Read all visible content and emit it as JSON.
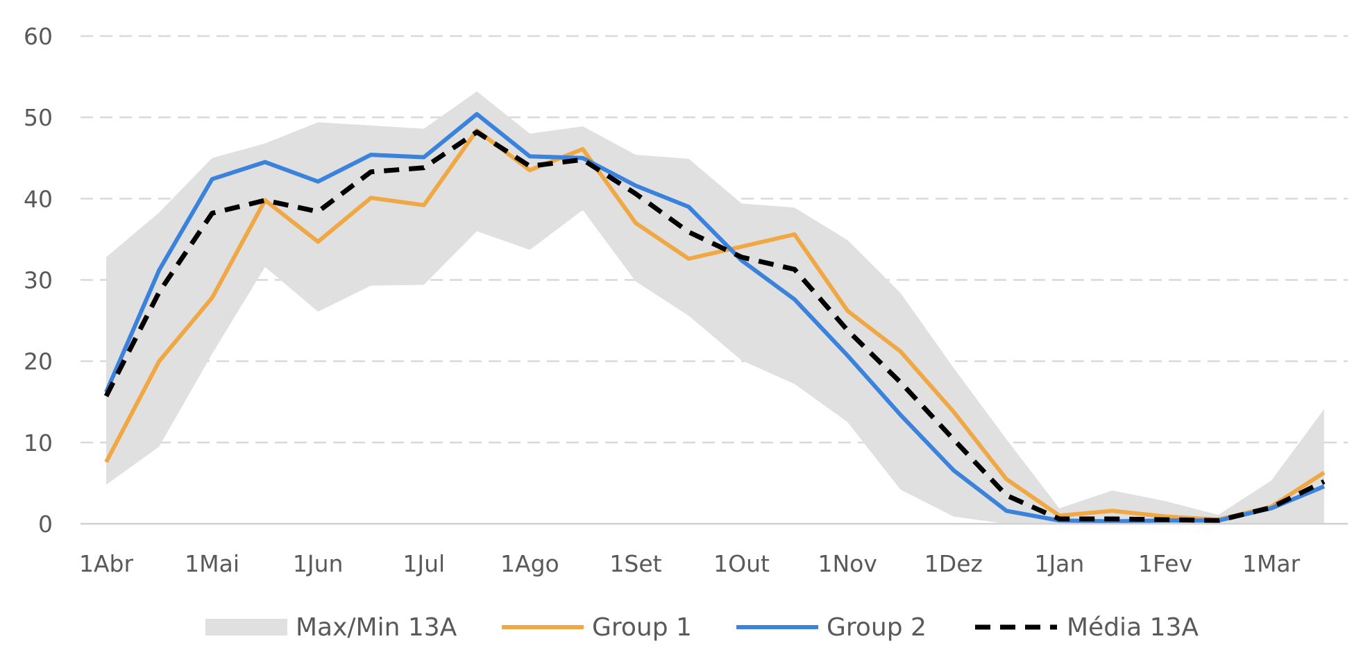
{
  "chart_data": {
    "type": "line",
    "title": "",
    "xlabel": "",
    "ylabel": "",
    "ylim": [
      0,
      60
    ],
    "yticks": [
      0,
      10,
      20,
      30,
      40,
      50,
      60
    ],
    "grid": "horizontal dashed",
    "legend_position": "bottom",
    "x_tick_labels": [
      "1Abr",
      "1Mai",
      "1Jun",
      "1Jul",
      "1Ago",
      "1Set",
      "1Out",
      "1Nov",
      "1Dez",
      "1Jan",
      "1Fev",
      "1Mar"
    ],
    "x": [
      0,
      0.5,
      1,
      1.5,
      2,
      2.5,
      3,
      3.5,
      4,
      4.5,
      5,
      5.5,
      6,
      6.5,
      7,
      7.5,
      8,
      8.5,
      9,
      9.5,
      10,
      10.5,
      11,
      11.5
    ],
    "band": {
      "name": "Max/Min 13A",
      "color": "#e0e0e0",
      "max": [
        32.8,
        38.3,
        45.0,
        46.8,
        49.4,
        49.0,
        48.6,
        53.2,
        48.0,
        48.9,
        45.4,
        44.9,
        39.4,
        38.9,
        34.9,
        28.4,
        19.2,
        10.4,
        1.9,
        4.1,
        2.8,
        1.1,
        5.3,
        14.1
      ],
      "min": [
        4.8,
        9.5,
        20.9,
        31.6,
        26.1,
        29.3,
        29.4,
        36.0,
        33.7,
        38.6,
        29.8,
        25.6,
        20.1,
        17.2,
        12.5,
        4.2,
        0.9,
        0.0,
        0.0,
        0.0,
        0.0,
        0.0,
        0.0,
        0.0
      ]
    },
    "series": [
      {
        "name": "Group 1",
        "color": "#f0a845",
        "style": "solid",
        "values": [
          7.6,
          20.0,
          27.8,
          39.8,
          34.7,
          40.1,
          39.2,
          48.4,
          43.5,
          46.1,
          37.0,
          32.6,
          34.1,
          35.6,
          26.2,
          21.2,
          13.8,
          5.5,
          1.0,
          1.6,
          0.9,
          0.5,
          2.1,
          6.3
        ]
      },
      {
        "name": "Group 2",
        "color": "#3a82db",
        "style": "solid",
        "values": [
          16.2,
          31.2,
          42.4,
          44.5,
          42.1,
          45.4,
          45.1,
          50.4,
          45.2,
          45.0,
          41.6,
          39.0,
          32.4,
          27.6,
          20.7,
          13.4,
          6.6,
          1.6,
          0.4,
          0.3,
          0.4,
          0.4,
          1.9,
          4.6
        ]
      },
      {
        "name": "Média 13A",
        "color": "#000000",
        "style": "dashed",
        "values": [
          15.7,
          28.5,
          38.2,
          39.8,
          38.4,
          43.3,
          43.8,
          48.2,
          44.0,
          44.8,
          40.6,
          35.9,
          32.8,
          31.3,
          23.8,
          17.4,
          10.4,
          3.5,
          0.6,
          0.6,
          0.5,
          0.4,
          2.0,
          5.2
        ]
      }
    ]
  }
}
